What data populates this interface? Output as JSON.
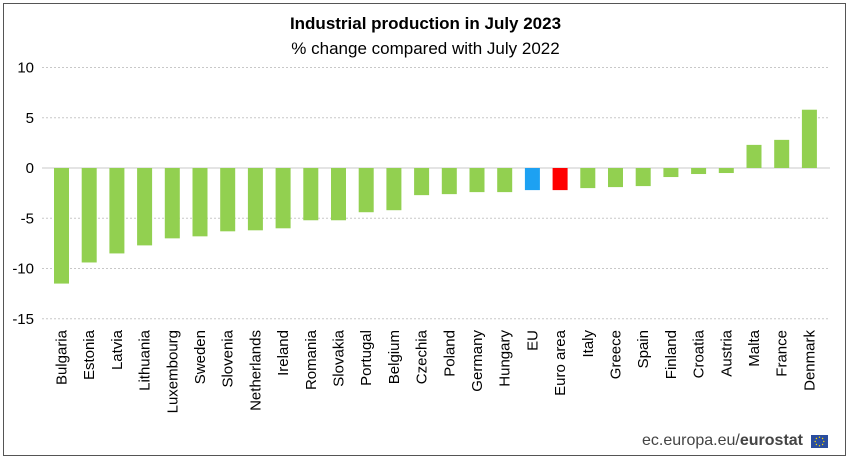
{
  "chart_data": {
    "type": "bar",
    "title": "Industrial production in July 2023",
    "subtitle": "% change compared with July 2022",
    "xlabel": "",
    "ylabel": "",
    "ylim": [
      -15,
      10
    ],
    "yticks": [
      10,
      5,
      0,
      -5,
      -10,
      -15
    ],
    "grid": true,
    "categories": [
      "Bulgaria",
      "Estonia",
      "Latvia",
      "Lithuania",
      "Luxembourg",
      "Sweden",
      "Slovenia",
      "Netherlands",
      "Ireland",
      "Romania",
      "Slovakia",
      "Portugal",
      "Belgium",
      "Czechia",
      "Poland",
      "Germany",
      "Hungary",
      "EU",
      "Euro area",
      "Italy",
      "Greece",
      "Spain",
      "Finland",
      "Croatia",
      "Austria",
      "Malta",
      "France",
      "Denmark"
    ],
    "values": [
      -11.5,
      -9.4,
      -8.5,
      -7.7,
      -7.0,
      -6.8,
      -6.3,
      -6.2,
      -6.0,
      -5.2,
      -5.2,
      -4.4,
      -4.2,
      -2.7,
      -2.6,
      -2.4,
      -2.4,
      -2.2,
      -2.2,
      -2.0,
      -1.9,
      -1.8,
      -0.9,
      -0.6,
      -0.5,
      2.3,
      2.8,
      5.8
    ],
    "colors": {
      "default": "#92d050",
      "EU": "#1da1f2",
      "Euro area": "#ff0000"
    }
  },
  "footer": {
    "source_prefix": "ec.europa.eu/",
    "source_brand": "eurostat"
  }
}
